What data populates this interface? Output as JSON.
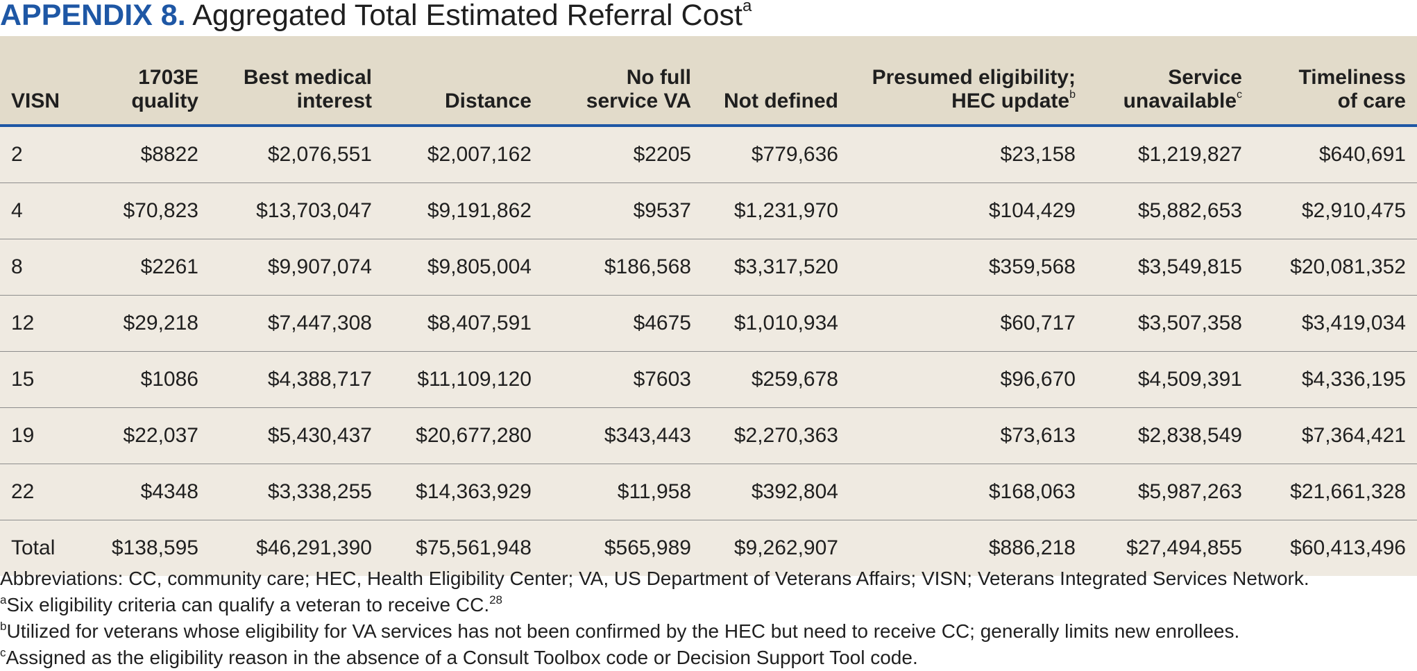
{
  "title": {
    "label": "APPENDIX 8.",
    "text": "Aggregated Total Estimated Referral Cost",
    "sup": "a"
  },
  "table": {
    "headers": [
      {
        "line1": "",
        "line2": "VISN",
        "sup": ""
      },
      {
        "line1": "1703E",
        "line2": "quality",
        "sup": ""
      },
      {
        "line1": "Best medical",
        "line2": "interest",
        "sup": ""
      },
      {
        "line1": "",
        "line2": "Distance",
        "sup": ""
      },
      {
        "line1": "No full",
        "line2": "service VA",
        "sup": ""
      },
      {
        "line1": "",
        "line2": "Not defined",
        "sup": ""
      },
      {
        "line1": "Presumed eligibility;",
        "line2": "HEC update",
        "sup": "b"
      },
      {
        "line1": "Service",
        "line2": "unavailable",
        "sup": "c"
      },
      {
        "line1": "Timeliness",
        "line2": "of care",
        "sup": ""
      }
    ],
    "rows": [
      [
        "2",
        "$8822",
        "$2,076,551",
        "$2,007,162",
        "$2205",
        "$779,636",
        "$23,158",
        "$1,219,827",
        "$640,691"
      ],
      [
        "4",
        "$70,823",
        "$13,703,047",
        "$9,191,862",
        "$9537",
        "$1,231,970",
        "$104,429",
        "$5,882,653",
        "$2,910,475"
      ],
      [
        "8",
        "$2261",
        "$9,907,074",
        "$9,805,004",
        "$186,568",
        "$3,317,520",
        "$359,568",
        "$3,549,815",
        "$20,081,352"
      ],
      [
        "12",
        "$29,218",
        "$7,447,308",
        "$8,407,591",
        "$4675",
        "$1,010,934",
        "$60,717",
        "$3,507,358",
        "$3,419,034"
      ],
      [
        "15",
        "$1086",
        "$4,388,717",
        "$11,109,120",
        "$7603",
        "$259,678",
        "$96,670",
        "$4,509,391",
        "$4,336,195"
      ],
      [
        "19",
        "$22,037",
        "$5,430,437",
        "$20,677,280",
        "$343,443",
        "$2,270,363",
        "$73,613",
        "$2,838,549",
        "$7,364,421"
      ],
      [
        "22",
        "$4348",
        "$3,338,255",
        "$14,363,929",
        "$11,958",
        "$392,804",
        "$168,063",
        "$5,987,263",
        "$21,661,328"
      ],
      [
        "Total",
        "$138,595",
        "$46,291,390",
        "$75,561,948",
        "$565,989",
        "$9,262,907",
        "$886,218",
        "$27,494,855",
        "$60,413,496"
      ]
    ]
  },
  "notes": {
    "abbreviations": "Abbreviations: CC, community care; HEC, Health Eligibility Center; VA, US Department of Veterans Affairs; VISN; Veterans Integrated Services Network.",
    "a": {
      "mark": "a",
      "text": "Six eligibility criteria can qualify a veteran to receive CC.",
      "ref": "28"
    },
    "b": {
      "mark": "b",
      "text": "Utilized for veterans whose eligibility for VA services has not been confirmed by the HEC but need to receive CC; generally limits new enrollees."
    },
    "c": {
      "mark": "c",
      "text": "Assigned as the eligibility reason in the absence of a Consult Toolbox code or Decision Support Tool code."
    }
  }
}
